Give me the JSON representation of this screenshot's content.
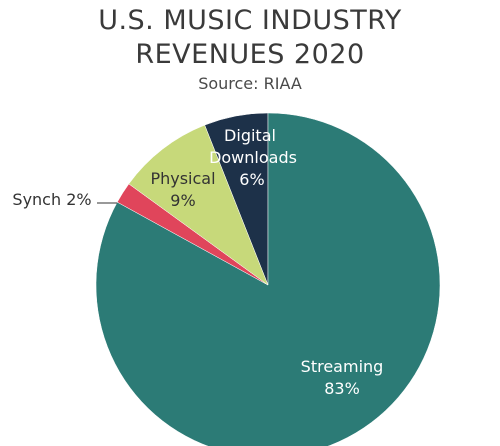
{
  "chart": {
    "title_line1": "U.S. MUSIC INDUSTRY",
    "title_line2": "REVENUES 2020",
    "subtitle": "Source: RIAA"
  },
  "chart_data": {
    "type": "pie",
    "title": "U.S. MUSIC INDUSTRY REVENUES 2020",
    "subtitle": "Source: RIAA",
    "unit": "%",
    "slices": [
      {
        "label": "Digital Downloads",
        "value": 6,
        "color": "#1d3149",
        "text_color": "#ffffff",
        "label_lines": [
          "Digital",
          "Downloads",
          "6%"
        ]
      },
      {
        "label": "Streaming",
        "value": 83,
        "color": "#2c7b76",
        "text_color": "#ffffff",
        "label_lines": [
          "Streaming",
          "83%"
        ]
      },
      {
        "label": "Synch",
        "value": 2,
        "color": "#e0455b",
        "text_color": "#333333",
        "label_lines": [
          "Synch 2%"
        ]
      },
      {
        "label": "Physical",
        "value": 9,
        "color": "#c7d97a",
        "text_color": "#333333",
        "label_lines": [
          "Physical",
          "9%"
        ]
      }
    ]
  }
}
